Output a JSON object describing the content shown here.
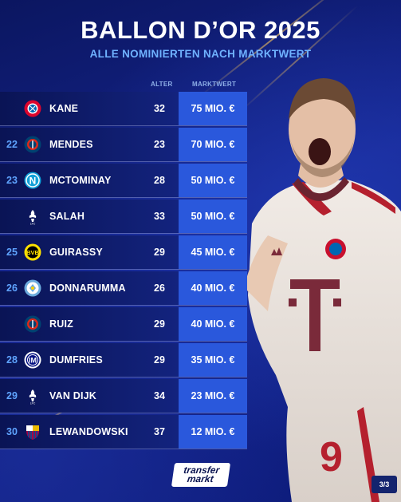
{
  "header": {
    "title": "BALLON D’OR 2025",
    "subtitle": "ALLE NOMINIERTEN NACH MARKTWERT"
  },
  "columns": {
    "age": "ALTER",
    "value": "MARKTWERT"
  },
  "rows": [
    {
      "rank": "",
      "club_icon": "bayern-logo",
      "name": "KANE",
      "age": "32",
      "value": "75 MIO. €"
    },
    {
      "rank": "22",
      "club_icon": "psg-logo",
      "name": "MENDES",
      "age": "23",
      "value": "70 MIO. €"
    },
    {
      "rank": "23",
      "club_icon": "napoli-logo",
      "name": "MCTOMINAY",
      "age": "28",
      "value": "50 MIO. €"
    },
    {
      "rank": "",
      "club_icon": "liverpool-logo",
      "name": "SALAH",
      "age": "33",
      "value": "50 MIO. €"
    },
    {
      "rank": "25",
      "club_icon": "dortmund-logo",
      "name": "GUIRASSY",
      "age": "29",
      "value": "45 MIO. €"
    },
    {
      "rank": "26",
      "club_icon": "man-city-logo",
      "name": "DONNARUMMA",
      "age": "26",
      "value": "40 MIO. €"
    },
    {
      "rank": "",
      "club_icon": "psg-logo",
      "name": "RUIZ",
      "age": "29",
      "value": "40 MIO. €"
    },
    {
      "rank": "28",
      "club_icon": "inter-logo",
      "name": "DUMFRIES",
      "age": "29",
      "value": "35 MIO. €"
    },
    {
      "rank": "29",
      "club_icon": "liverpool-logo",
      "name": "VAN DIJK",
      "age": "34",
      "value": "23 MIO. €"
    },
    {
      "rank": "30",
      "club_icon": "barcelona-logo",
      "name": "LEWANDOWSKI",
      "age": "37",
      "value": "12 MIO. €"
    }
  ],
  "brand": {
    "line1": "transfer",
    "line2": "markt"
  },
  "page_indicator": "3/3",
  "colors": {
    "background": "#0d1a6e",
    "value_cell": "#2a58dc",
    "rank_text": "#5fa4ff",
    "subtitle": "#6fb2ff"
  }
}
